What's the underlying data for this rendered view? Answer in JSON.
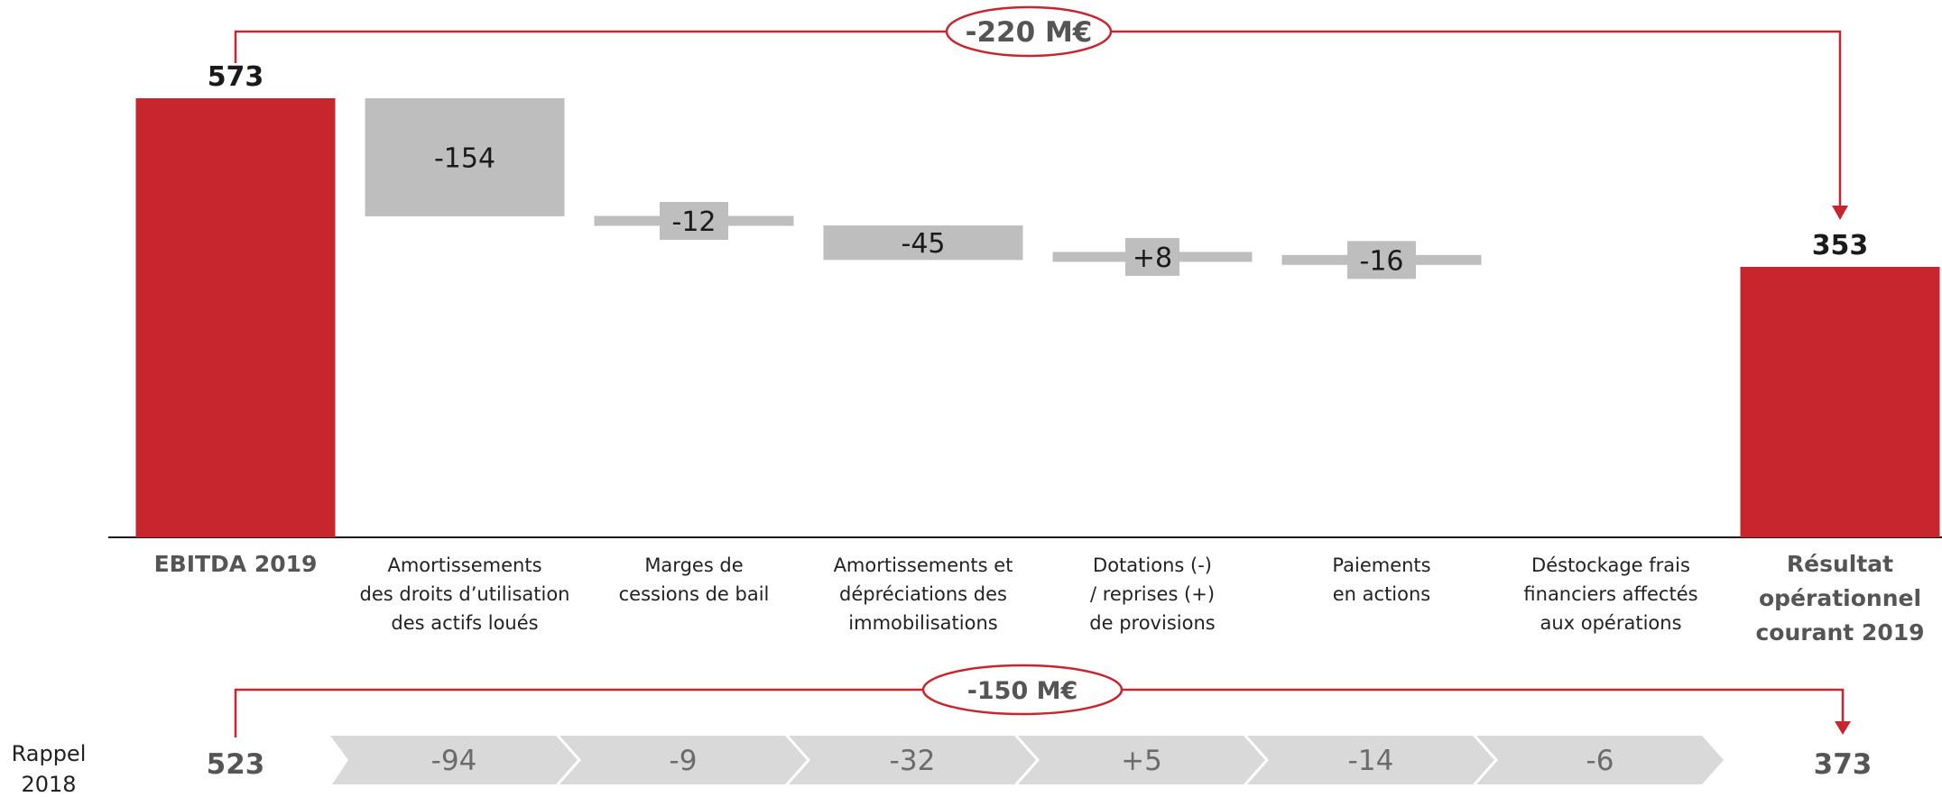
{
  "colors": {
    "accent_red": "#C8262F",
    "bar_grey": "#BEBEBE",
    "chevron_grey": "#D9D9D9",
    "axis": "#1a1a1a",
    "muted_text": "#555555",
    "recap_text": "#6b6b6b"
  },
  "chart_data": {
    "type": "bar",
    "subtype": "waterfall",
    "unit": "M€",
    "categories": [
      "EBITDA 2019",
      "Amortissements des droits d’utilisation des actifs loués",
      "Marges de cessions de bail",
      "Amortissements et dépréciations des immobilisations",
      "Dotations (-) / reprises (+) de provisions",
      "Paiements en actions",
      "Déstockage frais financiers affectés aux opérations",
      "Résultat opérationnel courant 2019"
    ],
    "category_lines": [
      [
        "EBITDA 2019"
      ],
      [
        "Amortissements",
        "des droits d’utilisation",
        "des actifs loués"
      ],
      [
        "Marges de",
        "cessions de bail"
      ],
      [
        "Amortissements et",
        "dépréciations des",
        "immobilisations"
      ],
      [
        "Dotations (-)",
        "/ reprises (+)",
        "de provisions"
      ],
      [
        "Paiements",
        "en actions"
      ],
      [
        "Déstockage frais",
        "financiers affectés",
        "aux opérations"
      ],
      [
        "Résultat",
        "opérationnel",
        "courant 2019"
      ]
    ],
    "bold_categories": [
      0,
      7
    ],
    "values": [
      573,
      -154,
      -12,
      -45,
      8,
      -16,
      null,
      353
    ],
    "bar_types": [
      "total",
      "delta",
      "delta",
      "delta",
      "delta",
      "delta",
      "delta",
      "total"
    ],
    "value_labels": [
      "573",
      "-154",
      "-12",
      "-45",
      "+8",
      "-16",
      "",
      "353"
    ],
    "ylim": [
      0,
      573
    ],
    "grid": false,
    "bridge": {
      "label": "-220 M€",
      "from_category": 0,
      "to_category": 7
    },
    "recap": {
      "label_lines": [
        "Rappel",
        "2018"
      ],
      "start_value": "523",
      "end_value": "373",
      "steps": [
        "-94",
        "-9",
        "-32",
        "+5",
        "-14",
        "-6"
      ],
      "bridge_label": "-150 M€"
    }
  }
}
